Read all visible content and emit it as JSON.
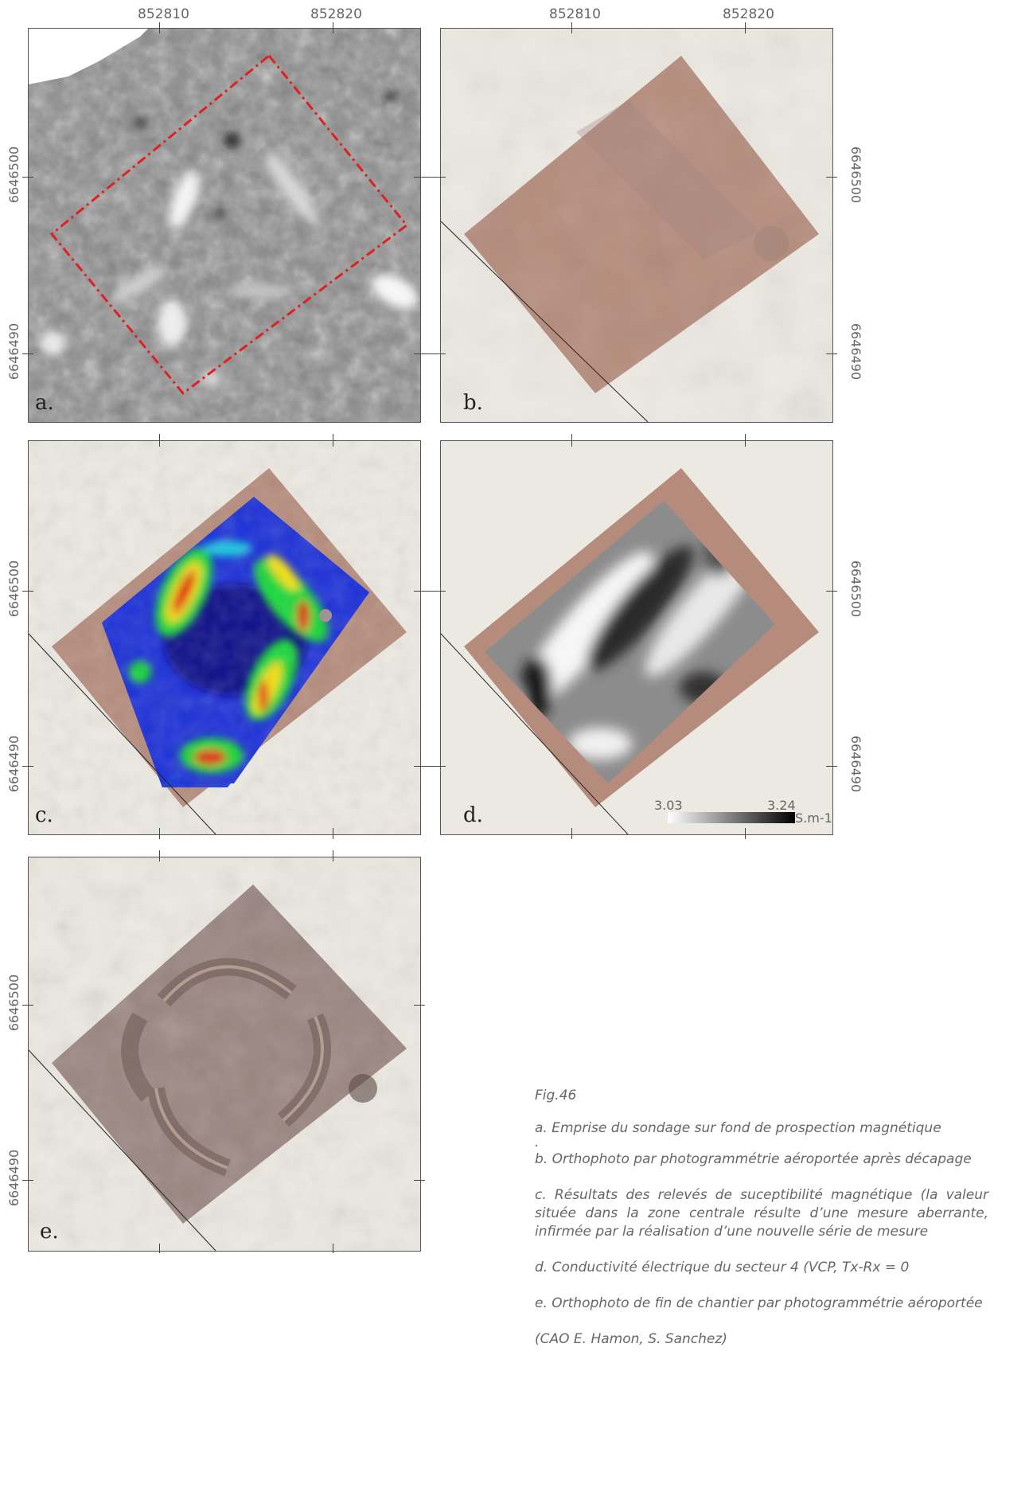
{
  "coords": {
    "x_labels": [
      "852810",
      "852820"
    ],
    "y_labels": [
      "6646500",
      "6646490"
    ]
  },
  "panels": [
    {
      "label": "a.",
      "kind": "magnetic-prospection"
    },
    {
      "label": "b.",
      "kind": "orthophoto-after-stripping"
    },
    {
      "label": "c.",
      "kind": "magnetic-susceptibility"
    },
    {
      "label": "d.",
      "kind": "electrical-conductivity"
    },
    {
      "label": "e.",
      "kind": "orthophoto-end-of-works"
    }
  ],
  "legend": {
    "min": "3.03",
    "max": "3.24",
    "unit": "S.m-1"
  },
  "caption": {
    "fig": "Fig.46",
    "a": "a. Emprise du sondage sur fond de prospection magnétique",
    "a_dot": ".",
    "b": "b. Orthophoto par photogrammétrie aéroportée après décapage",
    "c": "c. Résultats des relevés de suceptibilité magnétique (la valeur située dans la zone centrale résulte d’une mesure aberrante, infirmée par la réalisation d’une nouvelle série de mesure",
    "d": "d. Conductivité électrique du secteur 4 (VCP, Tx-Rx = 0",
    "e": "e. Orthophoto de fin de chantier  par photogrammétrie aéroportée",
    "credit": "(CAO E. Hamon, S. Sanchez)"
  },
  "colors": {
    "excavation_pink": "#b98d7c",
    "background_beige": "#ece9e2",
    "survey_outline_red": "#e02020"
  }
}
